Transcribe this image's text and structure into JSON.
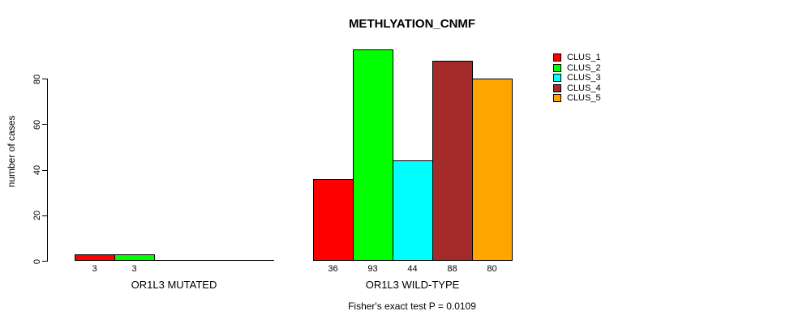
{
  "chart_data": {
    "type": "bar",
    "title": "METHLYATION_CNMF",
    "ylabel": "number of cases",
    "yticks": [
      0,
      20,
      40,
      60,
      80
    ],
    "ylim": [
      0,
      93
    ],
    "grid": false,
    "legend_position": "right",
    "legend": [
      {
        "label": "CLUS_1",
        "color": "#FF0000"
      },
      {
        "label": "CLUS_2",
        "color": "#00FF00"
      },
      {
        "label": "CLUS_3",
        "color": "#00FFFF"
      },
      {
        "label": "CLUS_4",
        "color": "#A52A2A"
      },
      {
        "label": "CLUS_5",
        "color": "#FFA500"
      }
    ],
    "groups": [
      {
        "label": "OR1L3 MUTATED",
        "values": [
          3,
          3,
          0,
          0,
          0
        ]
      },
      {
        "label": "OR1L3 WILD-TYPE",
        "values": [
          36,
          93,
          44,
          88,
          80
        ]
      }
    ],
    "footnote": "Fisher's exact test P = 0.0109",
    "colors": {
      "axis": "#000000",
      "background": "#FFFFFF"
    }
  }
}
